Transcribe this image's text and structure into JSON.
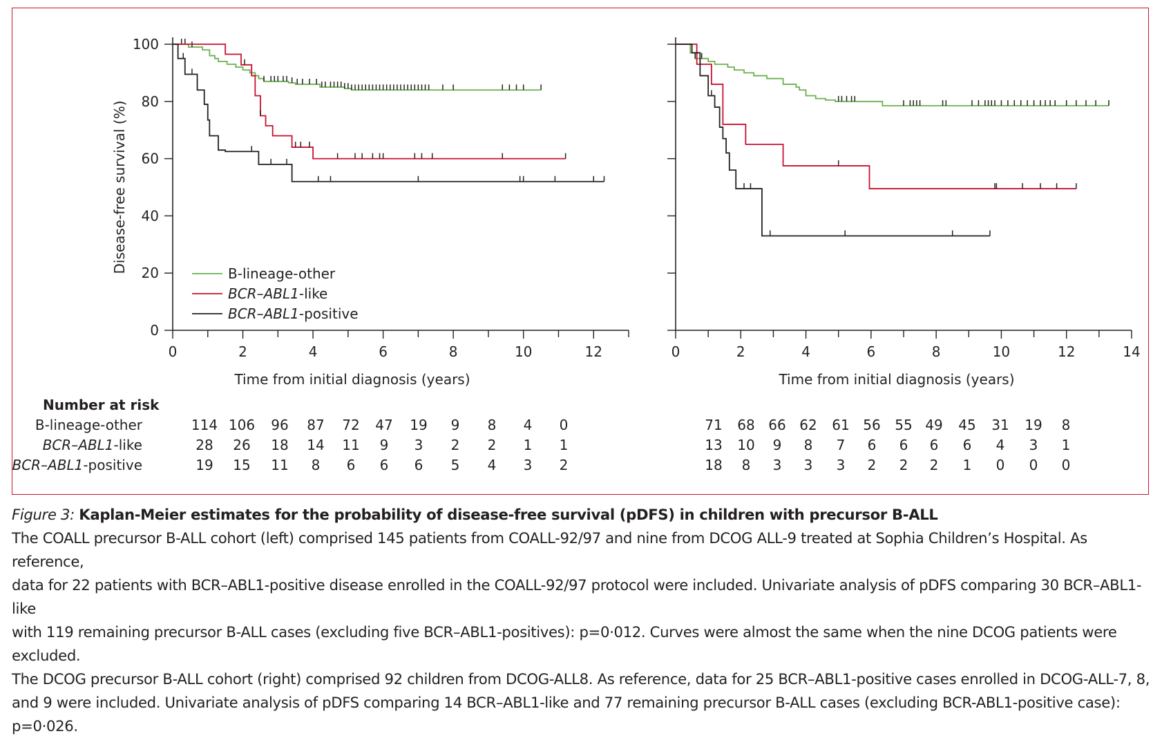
{
  "figure_frame_color": "#c8102e",
  "chart_data": [
    {
      "type": "line",
      "ylabel": "Disease-free survival (%)",
      "xlabel": "Time from initial diagnosis (years)",
      "xlim": [
        0,
        13
      ],
      "ylim": [
        0,
        100
      ],
      "xticks": [
        0,
        2,
        4,
        6,
        8,
        10,
        12
      ],
      "yticks": [
        0,
        20,
        40,
        60,
        80,
        100
      ],
      "legend_placement": "bottom-left",
      "legend": [
        {
          "label": "B-lineage-other",
          "color": "#6ab04c"
        },
        {
          "label": "BCR–ABL1-like",
          "color": "#c8102e"
        },
        {
          "label": "BCR–ABL1-positive",
          "color": "#231f20"
        }
      ],
      "series": [
        {
          "name": "B-lineage-other",
          "color": "#6ab04c",
          "steps": [
            [
              0,
              100
            ],
            [
              0.4,
              100
            ],
            [
              0.45,
              99
            ],
            [
              0.85,
              98
            ],
            [
              1.05,
              96
            ],
            [
              1.2,
              95
            ],
            [
              1.3,
              94
            ],
            [
              1.55,
              93
            ],
            [
              1.8,
              92
            ],
            [
              2.0,
              91
            ],
            [
              2.2,
              90
            ],
            [
              2.35,
              89
            ],
            [
              2.45,
              88
            ],
            [
              2.6,
              87
            ],
            [
              3.3,
              86.5
            ],
            [
              3.5,
              86
            ],
            [
              4.2,
              85
            ],
            [
              4.9,
              84.5
            ],
            [
              5.1,
              84
            ],
            [
              10.5,
              84
            ]
          ],
          "censor_times": [
            0.25,
            0.35,
            0.55,
            2.6,
            2.8,
            2.9,
            3.0,
            3.15,
            3.25,
            3.4,
            3.55,
            3.7,
            3.9,
            4.1,
            4.25,
            4.35,
            4.5,
            4.6,
            4.7,
            4.8,
            4.9,
            5.0,
            5.1,
            5.2,
            5.3,
            5.4,
            5.5,
            5.6,
            5.7,
            5.8,
            5.9,
            6.0,
            6.1,
            6.2,
            6.3,
            6.4,
            6.5,
            6.6,
            6.7,
            6.8,
            6.9,
            7.0,
            7.1,
            7.2,
            7.3,
            7.7,
            8.0,
            9.4,
            9.6,
            9.8,
            10.0,
            10.5
          ]
        },
        {
          "name": "BCR–ABL1-like",
          "color": "#c8102e",
          "steps": [
            [
              0,
              100
            ],
            [
              1.5,
              100
            ],
            [
              1.5,
              96.5
            ],
            [
              1.95,
              96.5
            ],
            [
              1.95,
              92.8
            ],
            [
              2.25,
              92.8
            ],
            [
              2.25,
              89
            ],
            [
              2.35,
              89
            ],
            [
              2.35,
              82
            ],
            [
              2.5,
              82
            ],
            [
              2.5,
              75
            ],
            [
              2.65,
              75
            ],
            [
              2.65,
              71.5
            ],
            [
              2.85,
              71.5
            ],
            [
              2.85,
              68
            ],
            [
              3.4,
              68
            ],
            [
              3.4,
              64
            ],
            [
              4.0,
              64
            ],
            [
              4.0,
              60
            ],
            [
              11.2,
              60
            ]
          ],
          "censor_times": [
            2.05,
            2.5,
            3.5,
            3.65,
            3.9,
            4.7,
            5.2,
            5.4,
            5.7,
            5.9,
            6.0,
            6.9,
            7.1,
            7.4,
            9.4,
            11.2
          ]
        },
        {
          "name": "BCR–ABL1-positive",
          "color": "#231f20",
          "steps": [
            [
              0,
              100
            ],
            [
              0.15,
              100
            ],
            [
              0.15,
              95
            ],
            [
              0.35,
              95
            ],
            [
              0.35,
              89.5
            ],
            [
              0.7,
              89.5
            ],
            [
              0.7,
              84
            ],
            [
              0.9,
              84
            ],
            [
              0.9,
              79
            ],
            [
              1.0,
              79
            ],
            [
              1.0,
              73.5
            ],
            [
              1.05,
              73.5
            ],
            [
              1.05,
              68
            ],
            [
              1.3,
              68
            ],
            [
              1.3,
              63
            ],
            [
              1.5,
              63
            ],
            [
              1.5,
              62.5
            ],
            [
              2.2,
              62.5
            ],
            [
              2.45,
              62.5
            ],
            [
              2.45,
              58
            ],
            [
              3.4,
              58
            ],
            [
              3.4,
              52
            ],
            [
              12.3,
              52
            ]
          ],
          "censor_times": [
            0.3,
            0.55,
            2.25,
            2.8,
            3.25,
            4.15,
            4.5,
            7.0,
            9.9,
            10.0,
            10.9,
            12.0,
            12.3
          ]
        }
      ],
      "number_at_risk_title": "Number at risk",
      "number_at_risk": [
        {
          "label": "B-lineage-other",
          "values": [
            "114",
            "106",
            "96",
            "87",
            "72",
            "47",
            "19",
            "9",
            "8",
            "4",
            "0"
          ]
        },
        {
          "label": "BCR–ABL1-like",
          "values": [
            "28",
            "26",
            "18",
            "14",
            "11",
            "9",
            "3",
            "2",
            "2",
            "1",
            "1"
          ]
        },
        {
          "label": "BCR–ABL1-positive",
          "values": [
            "19",
            "15",
            "11",
            "8",
            "6",
            "6",
            "6",
            "5",
            "4",
            "3",
            "2"
          ]
        }
      ]
    },
    {
      "type": "line",
      "xlabel": "Time from initial diagnosis (years)",
      "xlim": [
        0,
        14
      ],
      "ylim": [
        0,
        100
      ],
      "xticks": [
        0,
        2,
        4,
        6,
        8,
        10,
        12,
        14
      ],
      "yticks": [
        0,
        20,
        40,
        60,
        80,
        100
      ],
      "series": [
        {
          "name": "B-lineage-other",
          "color": "#6ab04c",
          "steps": [
            [
              0,
              100
            ],
            [
              0.35,
              100
            ],
            [
              0.45,
              97
            ],
            [
              0.6,
              95
            ],
            [
              1.0,
              94
            ],
            [
              1.2,
              93
            ],
            [
              1.6,
              92
            ],
            [
              1.8,
              91
            ],
            [
              2.1,
              90
            ],
            [
              2.4,
              89
            ],
            [
              2.8,
              88
            ],
            [
              3.3,
              86
            ],
            [
              3.7,
              85
            ],
            [
              3.8,
              84
            ],
            [
              4.0,
              82
            ],
            [
              4.3,
              81
            ],
            [
              4.6,
              80.5
            ],
            [
              4.9,
              80
            ],
            [
              6.35,
              80
            ],
            [
              6.35,
              78.5
            ],
            [
              13.3,
              78.5
            ]
          ],
          "censor_times": [
            0.6,
            0.8,
            5.0,
            5.1,
            5.25,
            5.4,
            5.5,
            7.0,
            7.2,
            7.3,
            7.4,
            7.5,
            8.2,
            8.3,
            9.1,
            9.3,
            9.5,
            9.6,
            9.7,
            9.8,
            10.0,
            10.2,
            10.4,
            10.6,
            10.8,
            11.0,
            11.2,
            11.35,
            11.5,
            11.65,
            12.0,
            12.3,
            12.6,
            12.9,
            13.3
          ]
        },
        {
          "name": "BCR–ABL1-like",
          "color": "#c8102e",
          "steps": [
            [
              0,
              100
            ],
            [
              0.65,
              100
            ],
            [
              0.65,
              93
            ],
            [
              1.1,
              93
            ],
            [
              1.1,
              86
            ],
            [
              1.45,
              86
            ],
            [
              1.45,
              72
            ],
            [
              2.15,
              72
            ],
            [
              2.15,
              65
            ],
            [
              3.3,
              65
            ],
            [
              3.3,
              57.5
            ],
            [
              5.95,
              57.5
            ],
            [
              5.95,
              49.5
            ],
            [
              12.3,
              49.5
            ]
          ],
          "censor_times": [
            0.75,
            5.0,
            9.8,
            9.85,
            10.65,
            11.2,
            11.7,
            12.3
          ]
        },
        {
          "name": "BCR–ABL1-positive",
          "color": "#231f20",
          "steps": [
            [
              0,
              100
            ],
            [
              0.5,
              100
            ],
            [
              0.5,
              97
            ],
            [
              0.75,
              97
            ],
            [
              0.75,
              89
            ],
            [
              1.0,
              89
            ],
            [
              1.0,
              82
            ],
            [
              1.2,
              82
            ],
            [
              1.2,
              78
            ],
            [
              1.35,
              78
            ],
            [
              1.35,
              71
            ],
            [
              1.45,
              71
            ],
            [
              1.45,
              67
            ],
            [
              1.55,
              67
            ],
            [
              1.55,
              62
            ],
            [
              1.65,
              62
            ],
            [
              1.65,
              56
            ],
            [
              1.85,
              56
            ],
            [
              1.85,
              49.5
            ],
            [
              2.65,
              49.5
            ],
            [
              2.65,
              33
            ],
            [
              9.65,
              33
            ]
          ],
          "censor_times": [
            1.1,
            2.1,
            2.3,
            2.9,
            5.2,
            8.5,
            9.65
          ]
        }
      ],
      "number_at_risk": [
        {
          "label": "B-lineage-other",
          "values": [
            "71",
            "68",
            "66",
            "62",
            "61",
            "56",
            "55",
            "49",
            "45",
            "31",
            "19",
            "8"
          ]
        },
        {
          "label": "BCR–ABL1-like",
          "values": [
            "13",
            "10",
            "9",
            "8",
            "7",
            "6",
            "6",
            "6",
            "6",
            "4",
            "3",
            "1"
          ]
        },
        {
          "label": "BCR–ABL1-positive",
          "values": [
            "18",
            "8",
            "3",
            "3",
            "3",
            "2",
            "2",
            "2",
            "1",
            "0",
            "0",
            "0"
          ]
        }
      ]
    }
  ],
  "caption": {
    "fig_label": "Figure 3:",
    "title": "Kaplan-Meier estimates for the probability of disease-free survival (pDFS) in children with precursor B-ALL",
    "line1": "The COALL precursor B-ALL cohort (left) comprised 145 patients from COALL-92/97 and nine from DCOG ALL-9 treated at Sophia Children’s Hospital. As reference,",
    "line2": "data for 22 patients with BCR–ABL1-positive disease enrolled in the COALL-92/97 protocol were included. Univariate analysis of pDFS comparing 30 BCR–ABL1-like",
    "line3": "with 119 remaining precursor B-ALL cases (excluding five BCR–ABL1-positives): p=0·012. Curves were almost the same when the nine DCOG patients were excluded.",
    "line4": "The DCOG precursor B-ALL cohort (right) comprised 92 children from DCOG-ALL8. As reference, data for 25 BCR–ABL1-positive cases enrolled in DCOG-ALL-7, 8,",
    "line5": "and 9 were included. Univariate analysis of pDFS comparing 14 BCR–ABL1-like and 77 remaining precursor B-ALL cases (excluding BCR-ABL1-positive case): p=0·026."
  }
}
